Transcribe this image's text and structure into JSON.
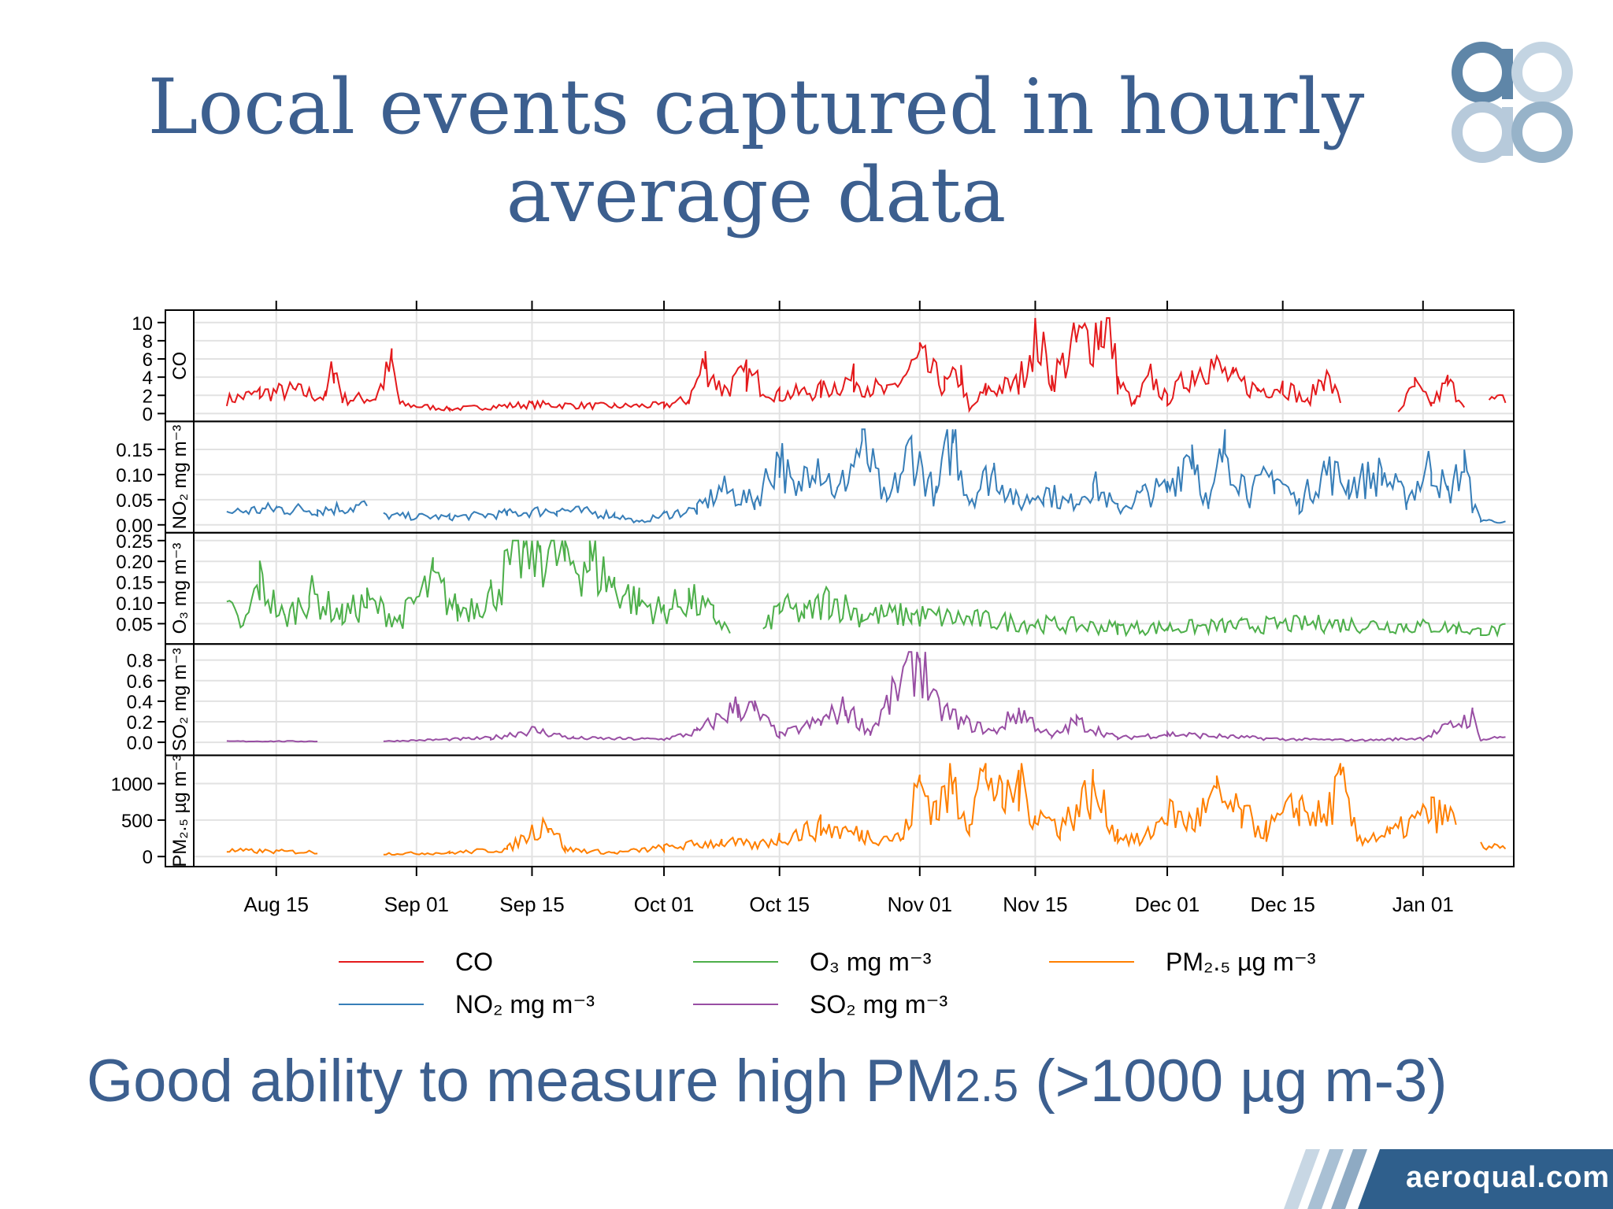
{
  "slide": {
    "title_line1": "Local events captured in hourly",
    "title_line2": "average data",
    "caption_main": "Good ability to measure high PM",
    "caption_sub": "2.5",
    "caption_end": " (>1000 µg m-3)",
    "brand": "aeroqual.com"
  },
  "colors": {
    "title": "#3c5f8f",
    "co": "#e41a1c",
    "no2": "#377eb8",
    "o3": "#4daf4a",
    "so2": "#984ea3",
    "pm25": "#ff7f00"
  },
  "chart_data": {
    "type": "line",
    "x_range": [
      "2013-08-05",
      "2014-01-12"
    ],
    "x_ticks": [
      "Aug 15",
      "Sep 01",
      "Sep 15",
      "Oct 01",
      "Oct 15",
      "Nov 01",
      "Nov 15",
      "Dec 01",
      "Dec 15",
      "Jan 01"
    ],
    "x_tick_dates": [
      "2013-08-15",
      "2013-09-01",
      "2013-09-15",
      "2013-10-01",
      "2013-10-15",
      "2013-11-01",
      "2013-11-15",
      "2013-12-01",
      "2013-12-15",
      "2014-01-01"
    ],
    "grid": true,
    "panels": [
      {
        "key": "co",
        "ylabel": "CO",
        "ylim": [
          0,
          10.5
        ],
        "yticks": [
          "0",
          "2",
          "4",
          "6",
          "8",
          "10"
        ],
        "ytick_values": [
          0,
          2,
          4,
          6,
          8,
          10
        ],
        "points": [
          [
            "2013-08-09",
            1.5
          ],
          [
            "2013-08-13",
            2.2
          ],
          [
            "2013-08-17",
            2.5
          ],
          [
            "2013-08-21",
            1.8
          ],
          [
            "2013-08-22",
            5.5
          ],
          [
            "2013-08-23",
            1.6
          ],
          [
            "2013-08-27",
            1.7
          ],
          [
            "2013-08-29",
            5.4
          ],
          [
            "2013-08-30",
            1.0
          ],
          [
            "2013-09-05",
            0.5
          ],
          [
            "2013-09-15",
            1.0
          ],
          [
            "2013-09-25",
            0.8
          ],
          [
            "2013-10-01",
            0.9
          ],
          [
            "2013-10-04",
            1.5
          ],
          [
            "2013-10-06",
            5.6
          ],
          [
            "2013-10-08",
            2.5
          ],
          [
            "2013-10-11",
            4.2
          ],
          [
            "2013-10-15",
            2.0
          ],
          [
            "2013-10-20",
            2.5
          ],
          [
            "2013-10-24",
            3.8
          ],
          [
            "2013-10-28",
            2.2
          ],
          [
            "2013-11-01",
            5.8
          ],
          [
            "2013-11-04",
            3.0
          ],
          [
            "2013-11-06",
            4.2
          ],
          [
            "2013-11-07",
            0.3
          ],
          [
            "2013-11-09",
            2.5
          ],
          [
            "2013-11-13",
            3.2
          ],
          [
            "2013-11-15",
            9.0
          ],
          [
            "2013-11-17",
            3.8
          ],
          [
            "2013-11-20",
            7.5
          ],
          [
            "2013-11-23",
            9.5
          ],
          [
            "2013-11-24",
            10.0
          ],
          [
            "2013-11-25",
            3.5
          ],
          [
            "2013-11-27",
            1.0
          ],
          [
            "2013-11-29",
            4.0
          ],
          [
            "2013-12-01",
            1.5
          ],
          [
            "2013-12-04",
            4.5
          ],
          [
            "2013-12-06",
            5.6
          ],
          [
            "2013-12-09",
            3.6
          ],
          [
            "2013-12-12",
            2.6
          ],
          [
            "2013-12-15",
            3.2
          ],
          [
            "2013-12-18",
            1.2
          ],
          [
            "2013-12-20",
            4.3
          ],
          [
            "2013-12-22",
            1.4
          ],
          [
            "2013-12-23",
            null
          ],
          [
            "2013-12-29",
            0.2
          ],
          [
            "2013-12-31",
            3.0
          ],
          [
            "2014-01-02",
            1.0
          ],
          [
            "2014-01-04",
            3.3
          ],
          [
            "2014-01-06",
            1.2
          ],
          [
            "2014-01-08",
            null
          ],
          [
            "2014-01-09",
            1.4
          ],
          [
            "2014-01-11",
            1.6
          ]
        ]
      },
      {
        "key": "no2",
        "ylabel": "NO₂ mg m⁻³",
        "ylim": [
          0,
          0.19
        ],
        "yticks": [
          "0.00",
          "0.05",
          "0.10",
          "0.15"
        ],
        "ytick_values": [
          0,
          0.05,
          0.1,
          0.15
        ],
        "points": [
          [
            "2013-08-09",
            0.025
          ],
          [
            "2013-08-15",
            0.032
          ],
          [
            "2013-08-20",
            0.03
          ],
          [
            "2013-08-26",
            0.038
          ],
          [
            "2013-08-27",
            null
          ],
          [
            "2013-08-28",
            0.018
          ],
          [
            "2013-09-05",
            0.015
          ],
          [
            "2013-09-12",
            0.022
          ],
          [
            "2013-09-18",
            0.03
          ],
          [
            "2013-09-25",
            0.02
          ],
          [
            "2013-09-28",
            0.005
          ],
          [
            "2013-10-01",
            0.02
          ],
          [
            "2013-10-05",
            0.03
          ],
          [
            "2013-10-08",
            0.07
          ],
          [
            "2013-10-12",
            0.045
          ],
          [
            "2013-10-15",
            0.14
          ],
          [
            "2013-10-17",
            0.05
          ],
          [
            "2013-10-19",
            0.15
          ],
          [
            "2013-10-22",
            0.06
          ],
          [
            "2013-10-25",
            0.16
          ],
          [
            "2013-10-28",
            0.04
          ],
          [
            "2013-10-31",
            0.15
          ],
          [
            "2013-11-03",
            0.055
          ],
          [
            "2013-11-05",
            0.185
          ],
          [
            "2013-11-07",
            0.05
          ],
          [
            "2013-11-10",
            0.11
          ],
          [
            "2013-11-13",
            0.04
          ],
          [
            "2013-11-16",
            0.07
          ],
          [
            "2013-11-19",
            0.04
          ],
          [
            "2013-11-22",
            0.08
          ],
          [
            "2013-11-25",
            0.03
          ],
          [
            "2013-11-28",
            0.06
          ],
          [
            "2013-12-01",
            0.07
          ],
          [
            "2013-12-04",
            0.16
          ],
          [
            "2013-12-06",
            0.03
          ],
          [
            "2013-12-08",
            0.16
          ],
          [
            "2013-12-11",
            0.06
          ],
          [
            "2013-12-14",
            0.1
          ],
          [
            "2013-12-17",
            0.04
          ],
          [
            "2013-12-20",
            0.11
          ],
          [
            "2013-12-23",
            0.08
          ],
          [
            "2013-12-27",
            0.1
          ],
          [
            "2013-12-30",
            0.05
          ],
          [
            "2014-01-02",
            0.12
          ],
          [
            "2014-01-04",
            0.06
          ],
          [
            "2014-01-06",
            0.12
          ],
          [
            "2014-01-07",
            0.04
          ],
          [
            "2014-01-08",
            0.01
          ],
          [
            "2014-01-11",
            0.005
          ]
        ]
      },
      {
        "key": "o3",
        "ylabel": "O₃ mg m⁻³",
        "ylim": [
          0.02,
          0.25
        ],
        "yticks": [
          "0.05",
          "0.10",
          "0.15",
          "0.20",
          "0.25"
        ],
        "ytick_values": [
          0.05,
          0.1,
          0.15,
          0.2,
          0.25
        ],
        "points": [
          [
            "2013-08-09",
            0.09
          ],
          [
            "2013-08-11",
            0.04
          ],
          [
            "2013-08-13",
            0.15
          ],
          [
            "2013-08-16",
            0.06
          ],
          [
            "2013-08-19",
            0.12
          ],
          [
            "2013-08-23",
            0.07
          ],
          [
            "2013-08-26",
            0.1
          ],
          [
            "2013-08-30",
            0.06
          ],
          [
            "2013-09-03",
            0.15
          ],
          [
            "2013-09-06",
            0.08
          ],
          [
            "2013-09-10",
            0.12
          ],
          [
            "2013-09-14",
            0.23
          ],
          [
            "2013-09-16",
            0.24
          ],
          [
            "2013-09-19",
            0.2
          ],
          [
            "2013-09-22",
            0.2
          ],
          [
            "2013-09-25",
            0.14
          ],
          [
            "2013-09-28",
            0.1
          ],
          [
            "2013-10-01",
            0.08
          ],
          [
            "2013-10-04",
            0.11
          ],
          [
            "2013-10-07",
            0.07
          ],
          [
            "2013-10-09",
            0.03
          ],
          [
            "2013-10-10",
            null
          ],
          [
            "2013-10-13",
            0.03
          ],
          [
            "2013-10-15",
            0.09
          ],
          [
            "2013-10-18",
            0.07
          ],
          [
            "2013-10-21",
            0.11
          ],
          [
            "2013-10-25",
            0.07
          ],
          [
            "2013-10-31",
            0.07
          ],
          [
            "2013-11-07",
            0.06
          ],
          [
            "2013-11-15",
            0.05
          ],
          [
            "2013-11-25",
            0.04
          ],
          [
            "2013-12-01",
            0.04
          ],
          [
            "2013-12-10",
            0.045
          ],
          [
            "2013-12-20",
            0.05
          ],
          [
            "2013-12-30",
            0.045
          ],
          [
            "2014-01-05",
            0.04
          ],
          [
            "2014-01-08",
            0.03
          ],
          [
            "2014-01-11",
            0.035
          ]
        ]
      },
      {
        "key": "so2",
        "ylabel": "SO₂ mg m⁻³",
        "ylim": [
          -0.05,
          0.88
        ],
        "yticks": [
          "0.0",
          "0.2",
          "0.4",
          "0.6",
          "0.8"
        ],
        "ytick_values": [
          0.0,
          0.2,
          0.4,
          0.6,
          0.8
        ],
        "points": [
          [
            "2013-08-09",
            0.01
          ],
          [
            "2013-08-20",
            0.01
          ],
          [
            "2013-08-27",
            null
          ],
          [
            "2013-08-28",
            0.01
          ],
          [
            "2013-09-10",
            0.04
          ],
          [
            "2013-09-15",
            0.12
          ],
          [
            "2013-09-20",
            0.04
          ],
          [
            "2013-10-01",
            0.03
          ],
          [
            "2013-10-05",
            0.1
          ],
          [
            "2013-10-10",
            0.35
          ],
          [
            "2013-10-12",
            0.3
          ],
          [
            "2013-10-15",
            0.07
          ],
          [
            "2013-10-20",
            0.2
          ],
          [
            "2013-10-23",
            0.33
          ],
          [
            "2013-10-26",
            0.1
          ],
          [
            "2013-11-01",
            0.85
          ],
          [
            "2013-11-03",
            0.35
          ],
          [
            "2013-11-06",
            0.2
          ],
          [
            "2013-11-10",
            0.1
          ],
          [
            "2013-11-13",
            0.3
          ],
          [
            "2013-11-17",
            0.05
          ],
          [
            "2013-11-20",
            0.2
          ],
          [
            "2013-11-25",
            0.04
          ],
          [
            "2013-12-01",
            0.08
          ],
          [
            "2013-12-15",
            0.03
          ],
          [
            "2013-12-25",
            0.02
          ],
          [
            "2014-01-01",
            0.04
          ],
          [
            "2014-01-07",
            0.25
          ],
          [
            "2014-01-08",
            0.02
          ],
          [
            "2014-01-11",
            0.06
          ]
        ]
      },
      {
        "key": "pm25",
        "ylabel": "PM₂.₅ µg m⁻³",
        "ylim": [
          -30,
          1280
        ],
        "yticks": [
          "0",
          "500",
          "1000"
        ],
        "ytick_values": [
          0,
          500,
          1000
        ],
        "points": [
          [
            "2013-08-09",
            80
          ],
          [
            "2013-08-20",
            60
          ],
          [
            "2013-08-27",
            null
          ],
          [
            "2013-08-28",
            40
          ],
          [
            "2013-09-05",
            50
          ],
          [
            "2013-09-12",
            100
          ],
          [
            "2013-09-17",
            500
          ],
          [
            "2013-09-19",
            100
          ],
          [
            "2013-09-25",
            50
          ],
          [
            "2013-10-01",
            120
          ],
          [
            "2013-10-08",
            200
          ],
          [
            "2013-10-12",
            150
          ],
          [
            "2013-10-15",
            250
          ],
          [
            "2013-10-20",
            400
          ],
          [
            "2013-10-25",
            300
          ],
          [
            "2013-10-30",
            250
          ],
          [
            "2013-11-01",
            1000
          ],
          [
            "2013-11-03",
            650
          ],
          [
            "2013-11-05",
            950
          ],
          [
            "2013-11-07",
            500
          ],
          [
            "2013-11-09",
            1250
          ],
          [
            "2013-11-11",
            700
          ],
          [
            "2013-11-13",
            1000
          ],
          [
            "2013-11-15",
            600
          ],
          [
            "2013-11-18",
            400
          ],
          [
            "2013-11-22",
            900
          ],
          [
            "2013-11-25",
            300
          ],
          [
            "2013-11-28",
            200
          ],
          [
            "2013-12-01",
            600
          ],
          [
            "2013-12-04",
            450
          ],
          [
            "2013-12-07",
            800
          ],
          [
            "2013-12-10",
            550
          ],
          [
            "2013-12-13",
            350
          ],
          [
            "2013-12-17",
            700
          ],
          [
            "2013-12-20",
            500
          ],
          [
            "2013-12-22",
            1000
          ],
          [
            "2013-12-24",
            250
          ],
          [
            "2013-12-28",
            300
          ],
          [
            "2014-01-02",
            600
          ],
          [
            "2014-01-05",
            500
          ],
          [
            "2014-01-07",
            null
          ],
          [
            "2014-01-08",
            150
          ],
          [
            "2014-01-11",
            100
          ]
        ]
      }
    ],
    "legend": {
      "placement": "bottom",
      "entries": [
        {
          "key": "co",
          "label": "CO"
        },
        {
          "key": "o3",
          "label": "O₃ mg m⁻³"
        },
        {
          "key": "pm25",
          "label": "PM₂.₅ µg m⁻³"
        },
        {
          "key": "no2",
          "label": "NO₂ mg m⁻³"
        },
        {
          "key": "so2",
          "label": "SO₂ mg m⁻³"
        }
      ]
    }
  }
}
